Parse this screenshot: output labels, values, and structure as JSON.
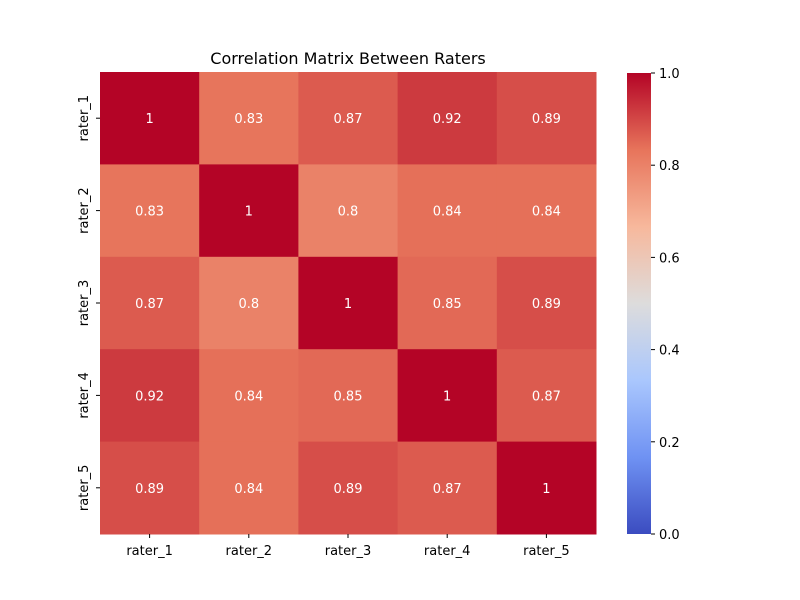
{
  "chart_data": {
    "type": "heatmap",
    "title": "Correlation Matrix Between Raters",
    "xlabel": "",
    "ylabel": "",
    "x_categories": [
      "rater_1",
      "rater_2",
      "rater_3",
      "rater_4",
      "rater_5"
    ],
    "y_categories": [
      "rater_1",
      "rater_2",
      "rater_3",
      "rater_4",
      "rater_5"
    ],
    "values": [
      [
        1,
        0.83,
        0.87,
        0.92,
        0.89
      ],
      [
        0.83,
        1,
        0.8,
        0.84,
        0.84
      ],
      [
        0.87,
        0.8,
        1,
        0.85,
        0.89
      ],
      [
        0.92,
        0.84,
        0.85,
        1,
        0.87
      ],
      [
        0.89,
        0.84,
        0.89,
        0.87,
        1
      ]
    ],
    "cell_labels": [
      [
        "1",
        "0.83",
        "0.87",
        "0.92",
        "0.89"
      ],
      [
        "0.83",
        "1",
        "0.8",
        "0.84",
        "0.84"
      ],
      [
        "0.87",
        "0.8",
        "1",
        "0.85",
        "0.89"
      ],
      [
        "0.92",
        "0.84",
        "0.85",
        "1",
        "0.87"
      ],
      [
        "0.89",
        "0.84",
        "0.89",
        "0.87",
        "1"
      ]
    ],
    "colormap": "coolwarm",
    "colormap_stops": [
      "#3b4cc0",
      "#6f92f3",
      "#aac7fd",
      "#dddcdc",
      "#f7b89c",
      "#e7745b",
      "#b40426"
    ],
    "vmin": 0.0,
    "vmax": 1.0,
    "colorbar_ticks": [
      0.0,
      0.2,
      0.4,
      0.6,
      0.8,
      1.0
    ],
    "colorbar_tick_labels": [
      "0.0",
      "0.2",
      "0.4",
      "0.6",
      "0.8",
      "1.0"
    ],
    "colorbar_position": "right",
    "grid": false
  }
}
